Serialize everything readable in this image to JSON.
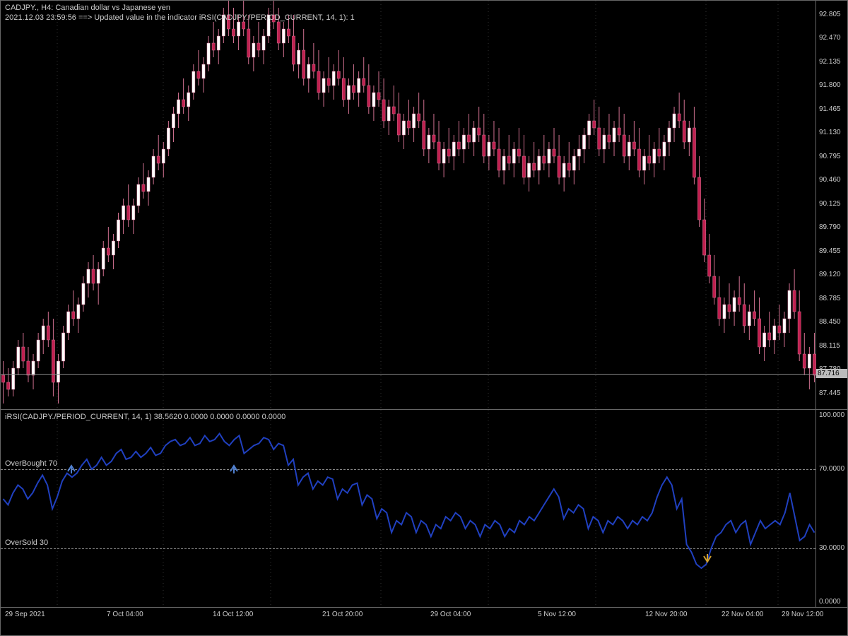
{
  "header": {
    "title": "CADJPY., H4:  Canadian dollar vs Japanese yen",
    "subtitle": "2021.12.03 23:59:56 ==>   Updated value in the indicator iRSI(CADJPY./PERIOD_CURRENT, 14, 1): 1"
  },
  "indicator": {
    "title": "iRSI(CADJPY./PERIOD_CURRENT, 14, 1) 38.5620 0.0000 0.0000 0.0000 0.0000",
    "overbought_label": "OverBought 70",
    "oversold_label": "OverSold 30"
  },
  "main_chart": {
    "type": "candlestick",
    "background": "#000000",
    "border": "#666666",
    "text_color": "#cccccc",
    "candle_bull_color": "#ffffff",
    "candle_bear_color": "#c02050",
    "candle_wick_color": "#d07090",
    "current_line_color": "#888888",
    "ymin": 87.2,
    "ymax": 93.0,
    "yticks": [
      "92.805",
      "92.470",
      "92.135",
      "91.800",
      "91.465",
      "91.130",
      "90.795",
      "90.460",
      "90.125",
      "89.790",
      "89.455",
      "89.120",
      "88.785",
      "88.450",
      "88.115",
      "87.780",
      "87.445"
    ],
    "ytick_values": [
      92.805,
      92.47,
      92.135,
      91.8,
      91.465,
      91.13,
      90.795,
      90.46,
      90.125,
      89.79,
      89.455,
      89.12,
      88.785,
      88.45,
      88.115,
      87.78,
      87.445
    ],
    "current_price": 87.716,
    "current_price_label": "87.716",
    "x_dotted": [
      80,
      230,
      382,
      538,
      690,
      842,
      998,
      1100
    ]
  },
  "sub_chart": {
    "type": "line",
    "line_color": "#2040c0",
    "line_width": 2,
    "ymin": 0,
    "ymax": 100,
    "levels": [
      70,
      30
    ],
    "level_color": "#888888",
    "yticks": [
      "100.000",
      "70.0000",
      "30.0000",
      "0.0000"
    ],
    "ytick_values": [
      100,
      70,
      30,
      0
    ],
    "arrow_points": [
      {
        "x": 100,
        "y": 70,
        "type": "up"
      },
      {
        "x": 330,
        "y": 70,
        "type": "up"
      },
      {
        "x": 1000,
        "y": 25,
        "type": "down"
      }
    ]
  },
  "x_axis": {
    "labels": [
      "29 Sep 2021",
      "7 Oct 04:00",
      "14 Oct 12:00",
      "21 Oct 20:00",
      "29 Oct 04:00",
      "5 Nov 12:00",
      "12 Nov 20:00",
      "22 Nov 04:00",
      "29 Nov 12:00"
    ],
    "positions": [
      6,
      150,
      300,
      455,
      608,
      760,
      912,
      1020,
      1105
    ]
  },
  "candles": [
    {
      "o": 87.7,
      "h": 87.9,
      "l": 87.3,
      "c": 87.6
    },
    {
      "o": 87.6,
      "h": 87.8,
      "l": 87.4,
      "c": 87.5
    },
    {
      "o": 87.5,
      "h": 87.9,
      "l": 87.4,
      "c": 87.8
    },
    {
      "o": 87.8,
      "h": 88.2,
      "l": 87.7,
      "c": 88.1
    },
    {
      "o": 88.1,
      "h": 88.3,
      "l": 87.8,
      "c": 87.9
    },
    {
      "o": 87.9,
      "h": 88.1,
      "l": 87.6,
      "c": 87.7
    },
    {
      "o": 87.7,
      "h": 88.0,
      "l": 87.5,
      "c": 87.9
    },
    {
      "o": 87.9,
      "h": 88.3,
      "l": 87.8,
      "c": 88.2
    },
    {
      "o": 88.2,
      "h": 88.5,
      "l": 88.0,
      "c": 88.4
    },
    {
      "o": 88.4,
      "h": 88.6,
      "l": 88.1,
      "c": 88.2
    },
    {
      "o": 88.2,
      "h": 88.5,
      "l": 87.4,
      "c": 87.6
    },
    {
      "o": 87.6,
      "h": 88.0,
      "l": 87.3,
      "c": 87.9
    },
    {
      "o": 87.9,
      "h": 88.4,
      "l": 87.8,
      "c": 88.3
    },
    {
      "o": 88.3,
      "h": 88.7,
      "l": 88.2,
      "c": 88.6
    },
    {
      "o": 88.6,
      "h": 88.9,
      "l": 88.4,
      "c": 88.5
    },
    {
      "o": 88.5,
      "h": 88.8,
      "l": 88.3,
      "c": 88.7
    },
    {
      "o": 88.7,
      "h": 89.1,
      "l": 88.6,
      "c": 89.0
    },
    {
      "o": 89.0,
      "h": 89.3,
      "l": 88.8,
      "c": 89.2
    },
    {
      "o": 89.2,
      "h": 89.4,
      "l": 88.9,
      "c": 89.0
    },
    {
      "o": 89.0,
      "h": 89.3,
      "l": 88.7,
      "c": 89.2
    },
    {
      "o": 89.2,
      "h": 89.6,
      "l": 89.1,
      "c": 89.5
    },
    {
      "o": 89.5,
      "h": 89.8,
      "l": 89.3,
      "c": 89.4
    },
    {
      "o": 89.4,
      "h": 89.7,
      "l": 89.2,
      "c": 89.6
    },
    {
      "o": 89.6,
      "h": 90.0,
      "l": 89.5,
      "c": 89.9
    },
    {
      "o": 89.9,
      "h": 90.2,
      "l": 89.7,
      "c": 90.1
    },
    {
      "o": 90.1,
      "h": 90.4,
      "l": 89.8,
      "c": 89.9
    },
    {
      "o": 89.9,
      "h": 90.2,
      "l": 89.7,
      "c": 90.1
    },
    {
      "o": 90.1,
      "h": 90.5,
      "l": 90.0,
      "c": 90.4
    },
    {
      "o": 90.4,
      "h": 90.7,
      "l": 90.2,
      "c": 90.3
    },
    {
      "o": 90.3,
      "h": 90.6,
      "l": 90.1,
      "c": 90.5
    },
    {
      "o": 90.5,
      "h": 90.9,
      "l": 90.4,
      "c": 90.8
    },
    {
      "o": 90.8,
      "h": 91.1,
      "l": 90.6,
      "c": 90.7
    },
    {
      "o": 90.7,
      "h": 91.0,
      "l": 90.5,
      "c": 90.9
    },
    {
      "o": 90.9,
      "h": 91.3,
      "l": 90.8,
      "c": 91.2
    },
    {
      "o": 91.2,
      "h": 91.5,
      "l": 91.0,
      "c": 91.4
    },
    {
      "o": 91.4,
      "h": 91.7,
      "l": 91.2,
      "c": 91.6
    },
    {
      "o": 91.6,
      "h": 91.9,
      "l": 91.4,
      "c": 91.5
    },
    {
      "o": 91.5,
      "h": 91.8,
      "l": 91.3,
      "c": 91.7
    },
    {
      "o": 91.7,
      "h": 92.1,
      "l": 91.6,
      "c": 92.0
    },
    {
      "o": 92.0,
      "h": 92.3,
      "l": 91.8,
      "c": 91.9
    },
    {
      "o": 91.9,
      "h": 92.2,
      "l": 91.7,
      "c": 92.1
    },
    {
      "o": 92.1,
      "h": 92.5,
      "l": 92.0,
      "c": 92.4
    },
    {
      "o": 92.4,
      "h": 92.7,
      "l": 92.2,
      "c": 92.3
    },
    {
      "o": 92.3,
      "h": 92.6,
      "l": 92.1,
      "c": 92.5
    },
    {
      "o": 92.5,
      "h": 92.9,
      "l": 92.4,
      "c": 92.8
    },
    {
      "o": 92.8,
      "h": 93.0,
      "l": 92.5,
      "c": 92.6
    },
    {
      "o": 92.6,
      "h": 92.9,
      "l": 92.4,
      "c": 92.5
    },
    {
      "o": 92.5,
      "h": 92.8,
      "l": 92.3,
      "c": 92.7
    },
    {
      "o": 92.7,
      "h": 93.0,
      "l": 92.5,
      "c": 92.6
    },
    {
      "o": 92.6,
      "h": 92.8,
      "l": 92.1,
      "c": 92.2
    },
    {
      "o": 92.2,
      "h": 92.5,
      "l": 92.0,
      "c": 92.4
    },
    {
      "o": 92.4,
      "h": 92.7,
      "l": 92.2,
      "c": 92.3
    },
    {
      "o": 92.3,
      "h": 92.6,
      "l": 92.1,
      "c": 92.5
    },
    {
      "o": 92.5,
      "h": 92.9,
      "l": 92.4,
      "c": 92.8
    },
    {
      "o": 92.8,
      "h": 93.0,
      "l": 92.6,
      "c": 92.7
    },
    {
      "o": 92.7,
      "h": 92.9,
      "l": 92.3,
      "c": 92.4
    },
    {
      "o": 92.4,
      "h": 92.7,
      "l": 92.2,
      "c": 92.6
    },
    {
      "o": 92.6,
      "h": 92.8,
      "l": 92.4,
      "c": 92.5
    },
    {
      "o": 92.5,
      "h": 92.8,
      "l": 92.0,
      "c": 92.1
    },
    {
      "o": 92.1,
      "h": 92.4,
      "l": 91.9,
      "c": 92.3
    },
    {
      "o": 92.3,
      "h": 92.6,
      "l": 91.8,
      "c": 91.9
    },
    {
      "o": 91.9,
      "h": 92.2,
      "l": 91.7,
      "c": 92.1
    },
    {
      "o": 92.1,
      "h": 92.4,
      "l": 91.9,
      "c": 92.0
    },
    {
      "o": 92.0,
      "h": 92.3,
      "l": 91.6,
      "c": 91.7
    },
    {
      "o": 91.7,
      "h": 92.0,
      "l": 91.5,
      "c": 91.9
    },
    {
      "o": 91.9,
      "h": 92.2,
      "l": 91.7,
      "c": 91.8
    },
    {
      "o": 91.8,
      "h": 92.1,
      "l": 91.6,
      "c": 92.0
    },
    {
      "o": 92.0,
      "h": 92.3,
      "l": 91.8,
      "c": 91.9
    },
    {
      "o": 91.9,
      "h": 92.2,
      "l": 91.5,
      "c": 91.6
    },
    {
      "o": 91.6,
      "h": 91.9,
      "l": 91.4,
      "c": 91.8
    },
    {
      "o": 91.8,
      "h": 92.1,
      "l": 91.6,
      "c": 91.7
    },
    {
      "o": 91.7,
      "h": 92.0,
      "l": 91.5,
      "c": 91.9
    },
    {
      "o": 91.9,
      "h": 92.2,
      "l": 91.7,
      "c": 91.8
    },
    {
      "o": 91.8,
      "h": 92.1,
      "l": 91.4,
      "c": 91.5
    },
    {
      "o": 91.5,
      "h": 91.8,
      "l": 91.3,
      "c": 91.7
    },
    {
      "o": 91.7,
      "h": 92.0,
      "l": 91.5,
      "c": 91.6
    },
    {
      "o": 91.6,
      "h": 91.9,
      "l": 91.2,
      "c": 91.3
    },
    {
      "o": 91.3,
      "h": 91.6,
      "l": 91.1,
      "c": 91.5
    },
    {
      "o": 91.5,
      "h": 91.8,
      "l": 91.3,
      "c": 91.4
    },
    {
      "o": 91.4,
      "h": 91.7,
      "l": 91.0,
      "c": 91.1
    },
    {
      "o": 91.1,
      "h": 91.4,
      "l": 90.9,
      "c": 91.3
    },
    {
      "o": 91.3,
      "h": 91.6,
      "l": 91.1,
      "c": 91.2
    },
    {
      "o": 91.2,
      "h": 91.5,
      "l": 91.0,
      "c": 91.4
    },
    {
      "o": 91.4,
      "h": 91.7,
      "l": 91.2,
      "c": 91.3
    },
    {
      "o": 91.3,
      "h": 91.6,
      "l": 90.8,
      "c": 90.9
    },
    {
      "o": 90.9,
      "h": 91.2,
      "l": 90.7,
      "c": 91.1
    },
    {
      "o": 91.1,
      "h": 91.4,
      "l": 90.9,
      "c": 91.0
    },
    {
      "o": 91.0,
      "h": 91.3,
      "l": 90.6,
      "c": 90.7
    },
    {
      "o": 90.7,
      "h": 91.0,
      "l": 90.5,
      "c": 90.9
    },
    {
      "o": 90.9,
      "h": 91.2,
      "l": 90.7,
      "c": 90.8
    },
    {
      "o": 90.8,
      "h": 91.1,
      "l": 90.6,
      "c": 91.0
    },
    {
      "o": 91.0,
      "h": 91.3,
      "l": 90.8,
      "c": 90.9
    },
    {
      "o": 90.9,
      "h": 91.2,
      "l": 90.7,
      "c": 91.1
    },
    {
      "o": 91.1,
      "h": 91.4,
      "l": 90.9,
      "c": 91.0
    },
    {
      "o": 91.0,
      "h": 91.3,
      "l": 90.8,
      "c": 91.2
    },
    {
      "o": 91.2,
      "h": 91.5,
      "l": 91.0,
      "c": 91.1
    },
    {
      "o": 91.1,
      "h": 91.4,
      "l": 90.7,
      "c": 90.8
    },
    {
      "o": 90.8,
      "h": 91.1,
      "l": 90.6,
      "c": 91.0
    },
    {
      "o": 91.0,
      "h": 91.3,
      "l": 90.8,
      "c": 90.9
    },
    {
      "o": 90.9,
      "h": 91.2,
      "l": 90.5,
      "c": 90.6
    },
    {
      "o": 90.6,
      "h": 90.9,
      "l": 90.4,
      "c": 90.8
    },
    {
      "o": 90.8,
      "h": 91.1,
      "l": 90.6,
      "c": 90.7
    },
    {
      "o": 90.7,
      "h": 91.0,
      "l": 90.5,
      "c": 90.9
    },
    {
      "o": 90.9,
      "h": 91.2,
      "l": 90.7,
      "c": 90.8
    },
    {
      "o": 90.8,
      "h": 91.1,
      "l": 90.4,
      "c": 90.5
    },
    {
      "o": 90.5,
      "h": 90.8,
      "l": 90.3,
      "c": 90.7
    },
    {
      "o": 90.7,
      "h": 91.0,
      "l": 90.5,
      "c": 90.6
    },
    {
      "o": 90.6,
      "h": 90.9,
      "l": 90.4,
      "c": 90.8
    },
    {
      "o": 90.8,
      "h": 91.1,
      "l": 90.6,
      "c": 90.7
    },
    {
      "o": 90.7,
      "h": 91.0,
      "l": 90.5,
      "c": 90.9
    },
    {
      "o": 90.9,
      "h": 91.2,
      "l": 90.7,
      "c": 90.8
    },
    {
      "o": 90.8,
      "h": 91.1,
      "l": 90.4,
      "c": 90.5
    },
    {
      "o": 90.5,
      "h": 90.8,
      "l": 90.3,
      "c": 90.7
    },
    {
      "o": 90.7,
      "h": 91.0,
      "l": 90.5,
      "c": 90.6
    },
    {
      "o": 90.6,
      "h": 90.9,
      "l": 90.4,
      "c": 90.8
    },
    {
      "o": 90.8,
      "h": 91.1,
      "l": 90.6,
      "c": 90.9
    },
    {
      "o": 90.9,
      "h": 91.2,
      "l": 90.7,
      "c": 91.1
    },
    {
      "o": 91.1,
      "h": 91.4,
      "l": 90.9,
      "c": 91.3
    },
    {
      "o": 91.3,
      "h": 91.6,
      "l": 91.1,
      "c": 91.2
    },
    {
      "o": 91.2,
      "h": 91.5,
      "l": 90.8,
      "c": 90.9
    },
    {
      "o": 90.9,
      "h": 91.2,
      "l": 90.7,
      "c": 91.1
    },
    {
      "o": 91.1,
      "h": 91.4,
      "l": 90.9,
      "c": 91.0
    },
    {
      "o": 91.0,
      "h": 91.3,
      "l": 90.8,
      "c": 91.2
    },
    {
      "o": 91.2,
      "h": 91.5,
      "l": 91.0,
      "c": 91.1
    },
    {
      "o": 91.1,
      "h": 91.4,
      "l": 90.7,
      "c": 90.8
    },
    {
      "o": 90.8,
      "h": 91.1,
      "l": 90.6,
      "c": 91.0
    },
    {
      "o": 91.0,
      "h": 91.3,
      "l": 90.8,
      "c": 90.9
    },
    {
      "o": 90.9,
      "h": 91.2,
      "l": 90.5,
      "c": 90.6
    },
    {
      "o": 90.6,
      "h": 90.9,
      "l": 90.4,
      "c": 90.8
    },
    {
      "o": 90.8,
      "h": 91.1,
      "l": 90.6,
      "c": 90.7
    },
    {
      "o": 90.7,
      "h": 91.0,
      "l": 90.5,
      "c": 90.9
    },
    {
      "o": 90.9,
      "h": 91.2,
      "l": 90.7,
      "c": 90.8
    },
    {
      "o": 90.8,
      "h": 91.1,
      "l": 90.6,
      "c": 91.0
    },
    {
      "o": 91.0,
      "h": 91.3,
      "l": 90.8,
      "c": 91.2
    },
    {
      "o": 91.2,
      "h": 91.5,
      "l": 91.0,
      "c": 91.4
    },
    {
      "o": 91.4,
      "h": 91.7,
      "l": 91.2,
      "c": 91.3
    },
    {
      "o": 91.3,
      "h": 91.6,
      "l": 90.9,
      "c": 91.0
    },
    {
      "o": 91.0,
      "h": 91.3,
      "l": 90.8,
      "c": 91.2
    },
    {
      "o": 91.2,
      "h": 91.5,
      "l": 90.4,
      "c": 90.5
    },
    {
      "o": 90.5,
      "h": 90.8,
      "l": 89.8,
      "c": 89.9
    },
    {
      "o": 89.9,
      "h": 90.2,
      "l": 89.3,
      "c": 89.4
    },
    {
      "o": 89.4,
      "h": 89.7,
      "l": 89.0,
      "c": 89.1
    },
    {
      "o": 89.1,
      "h": 89.4,
      "l": 88.7,
      "c": 88.8
    },
    {
      "o": 88.8,
      "h": 89.1,
      "l": 88.4,
      "c": 88.5
    },
    {
      "o": 88.5,
      "h": 88.8,
      "l": 88.3,
      "c": 88.7
    },
    {
      "o": 88.7,
      "h": 89.0,
      "l": 88.5,
      "c": 88.6
    },
    {
      "o": 88.6,
      "h": 88.9,
      "l": 88.4,
      "c": 88.8
    },
    {
      "o": 88.8,
      "h": 89.1,
      "l": 88.6,
      "c": 88.7
    },
    {
      "o": 88.7,
      "h": 89.0,
      "l": 88.3,
      "c": 88.4
    },
    {
      "o": 88.4,
      "h": 88.7,
      "l": 88.2,
      "c": 88.6
    },
    {
      "o": 88.6,
      "h": 88.9,
      "l": 88.4,
      "c": 88.5
    },
    {
      "o": 88.5,
      "h": 88.8,
      "l": 88.0,
      "c": 88.1
    },
    {
      "o": 88.1,
      "h": 88.4,
      "l": 87.9,
      "c": 88.3
    },
    {
      "o": 88.3,
      "h": 88.6,
      "l": 88.1,
      "c": 88.2
    },
    {
      "o": 88.2,
      "h": 88.5,
      "l": 88.0,
      "c": 88.4
    },
    {
      "o": 88.4,
      "h": 88.7,
      "l": 88.2,
      "c": 88.3
    },
    {
      "o": 88.3,
      "h": 88.6,
      "l": 88.1,
      "c": 88.5
    },
    {
      "o": 88.5,
      "h": 89.0,
      "l": 88.3,
      "c": 88.9
    },
    {
      "o": 88.9,
      "h": 89.2,
      "l": 88.5,
      "c": 88.6
    },
    {
      "o": 88.6,
      "h": 88.9,
      "l": 87.9,
      "c": 88.0
    },
    {
      "o": 88.0,
      "h": 88.3,
      "l": 87.7,
      "c": 87.8
    },
    {
      "o": 87.8,
      "h": 88.1,
      "l": 87.5,
      "c": 88.0
    },
    {
      "o": 88.0,
      "h": 88.3,
      "l": 87.6,
      "c": 87.7
    }
  ],
  "rsi": [
    55,
    52,
    58,
    62,
    60,
    55,
    58,
    63,
    67,
    62,
    50,
    56,
    64,
    68,
    66,
    68,
    72,
    75,
    70,
    72,
    76,
    72,
    74,
    78,
    80,
    75,
    76,
    79,
    76,
    78,
    81,
    77,
    78,
    82,
    84,
    85,
    82,
    83,
    86,
    82,
    83,
    87,
    84,
    85,
    88,
    84,
    82,
    85,
    87,
    78,
    80,
    82,
    83,
    86,
    85,
    80,
    83,
    82,
    72,
    75,
    62,
    66,
    68,
    60,
    64,
    62,
    66,
    65,
    55,
    60,
    58,
    62,
    63,
    52,
    57,
    55,
    45,
    50,
    48,
    38,
    44,
    42,
    48,
    46,
    38,
    44,
    42,
    36,
    42,
    40,
    46,
    44,
    48,
    46,
    40,
    44,
    42,
    36,
    42,
    40,
    44,
    42,
    36,
    40,
    38,
    44,
    42,
    46,
    44,
    48,
    52,
    56,
    60,
    56,
    45,
    50,
    48,
    52,
    50,
    40,
    46,
    44,
    38,
    44,
    42,
    46,
    44,
    40,
    44,
    42,
    46,
    44,
    48,
    56,
    62,
    66,
    62,
    50,
    55,
    32,
    28,
    22,
    20,
    22,
    30,
    36,
    38,
    42,
    44,
    38,
    42,
    44,
    32,
    38,
    44,
    40,
    42,
    44,
    42,
    48,
    58,
    46,
    34,
    36,
    42,
    38
  ]
}
